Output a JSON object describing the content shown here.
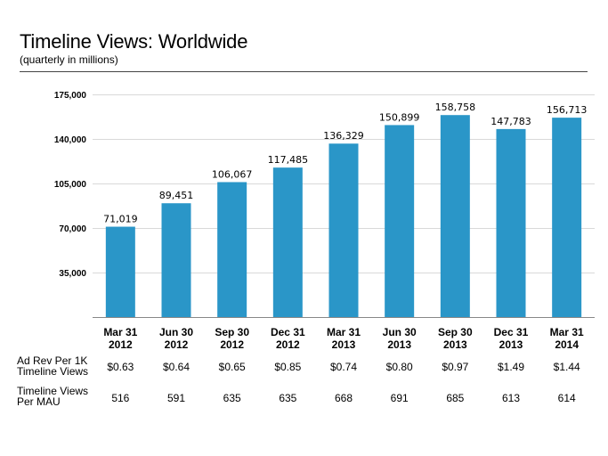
{
  "chart_data": {
    "type": "bar",
    "title": "Timeline Views: Worldwide",
    "subtitle": "(quarterly in millions)",
    "categories": [
      [
        "Mar 31",
        "2012"
      ],
      [
        "Jun 30",
        "2012"
      ],
      [
        "Sep 30",
        "2012"
      ],
      [
        "Dec 31",
        "2012"
      ],
      [
        "Mar 31",
        "2013"
      ],
      [
        "Jun 30",
        "2013"
      ],
      [
        "Sep 30",
        "2013"
      ],
      [
        "Dec 31",
        "2013"
      ],
      [
        "Mar 31",
        "2014"
      ]
    ],
    "values": [
      71019,
      89451,
      106067,
      117485,
      136329,
      150899,
      158758,
      147783,
      156713
    ],
    "value_labels": [
      "71,019",
      "89,451",
      "106,067",
      "117,485",
      "136,329",
      "150,899",
      "158,758",
      "147,783",
      "156,713"
    ],
    "ylim": [
      0,
      175000
    ],
    "yticks": [
      35000,
      70000,
      105000,
      140000,
      175000
    ],
    "ytick_labels": [
      "35,000",
      "70,000",
      "105,000",
      "140,000",
      "175,000"
    ],
    "grid": true,
    "bar_color": "#2a96c8"
  },
  "table": {
    "row1_label": [
      "Ad Rev Per 1K",
      "Timeline Views"
    ],
    "row1_values": [
      "$0.63",
      "$0.64",
      "$0.65",
      "$0.85",
      "$0.74",
      "$0.80",
      "$0.97",
      "$1.49",
      "$1.44"
    ],
    "row2_label": [
      "Timeline Views",
      "Per MAU"
    ],
    "row2_values": [
      "516",
      "591",
      "635",
      "635",
      "668",
      "691",
      "685",
      "613",
      "614"
    ]
  }
}
